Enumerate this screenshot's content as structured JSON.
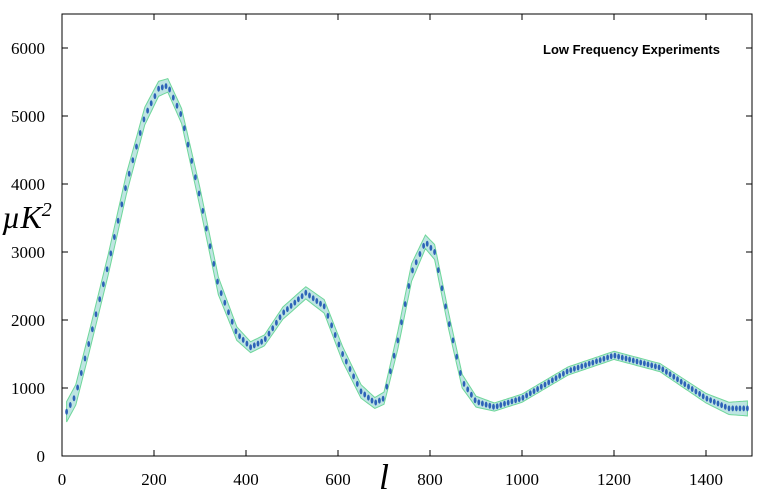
{
  "chart_data": {
    "type": "line",
    "title": "",
    "annotation": "Low Frequency Experiments",
    "xlabel": "l",
    "ylabel_base": "µK",
    "ylabel_sup": "2",
    "xlim": [
      0,
      1500
    ],
    "ylim": [
      0,
      6500
    ],
    "xticks": [
      0,
      200,
      400,
      600,
      800,
      1000,
      1200,
      1400
    ],
    "yticks": [
      0,
      1000,
      2000,
      3000,
      4000,
      5000,
      6000
    ],
    "grid": false,
    "colors": {
      "band_fill": "#a8dcd8",
      "band_edge": "#6fd79a",
      "marker": "#2d63b8"
    },
    "series": [
      {
        "x": [
          10,
          30,
          60,
          100,
          140,
          180,
          210,
          230,
          260,
          300,
          340,
          380,
          410,
          440,
          480,
          530,
          570,
          610,
          650,
          680,
          700,
          730,
          760,
          790,
          810,
          840,
          870,
          900,
          940,
          1000,
          1100,
          1200,
          1300,
          1400,
          1450,
          1490
        ],
        "y": [
          650,
          900,
          1700,
          2800,
          4000,
          5000,
          5400,
          5450,
          5000,
          3800,
          2500,
          1800,
          1600,
          1700,
          2100,
          2400,
          2200,
          1500,
          950,
          780,
          850,
          1700,
          2700,
          3150,
          3000,
          2000,
          1100,
          800,
          720,
          850,
          1250,
          1480,
          1300,
          850,
          700,
          700
        ],
        "band": [
          150,
          150,
          150,
          150,
          150,
          130,
          110,
          100,
          110,
          140,
          130,
          100,
          80,
          80,
          90,
          90,
          100,
          110,
          100,
          80,
          90,
          130,
          130,
          100,
          110,
          120,
          100,
          80,
          60,
          60,
          60,
          60,
          60,
          70,
          90,
          110
        ]
      }
    ]
  }
}
